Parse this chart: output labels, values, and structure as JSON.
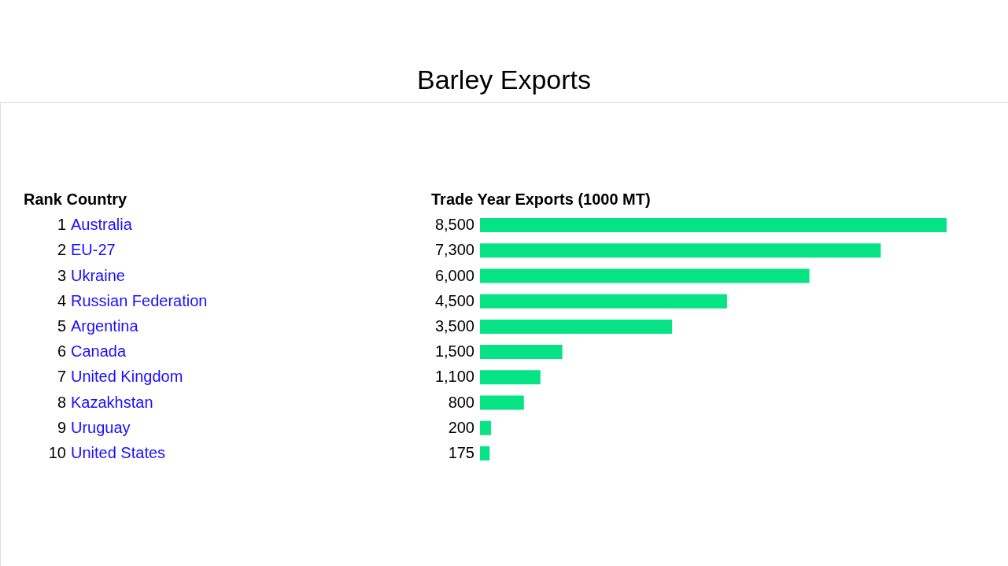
{
  "chart_data": {
    "type": "bar",
    "orientation": "horizontal",
    "title": "Barley Exports",
    "xlabel": "Trade Year Exports (1000 MT)",
    "annotations": [
      "Rank Country"
    ],
    "categories": [
      "1 Australia",
      "2 EU-27",
      "3 Ukraine",
      "4 Russian Federation",
      "5 Argentina",
      "6 Canada",
      "7 United Kingdom",
      "8 Kazakhstan",
      "9 Uruguay",
      "10 United States"
    ],
    "values": [
      8500,
      7300,
      6000,
      4500,
      3500,
      1500,
      1100,
      800,
      200,
      175
    ],
    "value_labels": [
      "8,500",
      "7,300",
      "6,000",
      "4,500",
      "3,500",
      "1,500",
      "1,100",
      "800",
      "200",
      "175"
    ],
    "color": "#05e384"
  }
}
